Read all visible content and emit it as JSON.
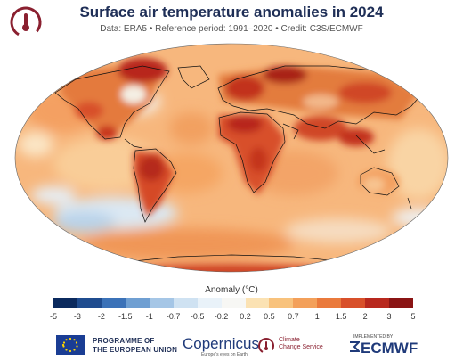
{
  "header": {
    "title": "Surface air temperature anomalies in 2024",
    "subtitle": "Data: ERA5 • Reference period: 1991–2020 • Credit: C3S/ECMWF"
  },
  "legend": {
    "title": "Anomaly (°C)",
    "ticks": [
      "-5",
      "-3",
      "-2",
      "-1.5",
      "-1",
      "-0.7",
      "-0.5",
      "-0.2",
      "0.2",
      "0.5",
      "0.7",
      "1",
      "1.5",
      "2",
      "3",
      "5"
    ],
    "colors": [
      "#0b2a5e",
      "#1f4c8f",
      "#3b72b8",
      "#6f9fd2",
      "#a5c6e6",
      "#cfe2f2",
      "#e9f2f9",
      "#f7f7f4",
      "#fbe2b3",
      "#f8c27c",
      "#f3a05a",
      "#ea7a3c",
      "#d8502a",
      "#b8281e",
      "#8a1414"
    ]
  },
  "footer": {
    "eu_line1": "PROGRAMME OF",
    "eu_line2": "THE EUROPEAN UNION",
    "copernicus": "Copernicus",
    "copernicus_sub": "Europe's eyes on Earth",
    "c3s_line1": "Climate",
    "c3s_line2": "Change Service",
    "ecmwf_small": "IMPLEMENTED BY",
    "ecmwf": "ECMWF"
  },
  "colors": {
    "title": "#1f2f57",
    "brand": "#8a2030",
    "ocean_warm": "#f6b576",
    "land_hot": "#c8341f"
  }
}
